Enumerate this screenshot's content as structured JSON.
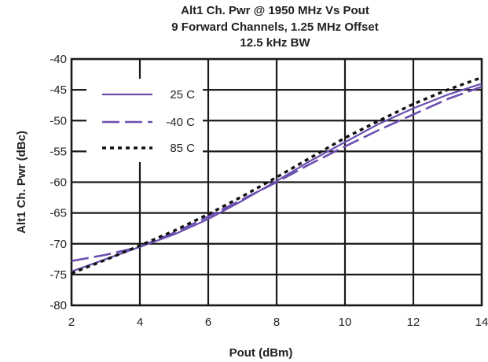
{
  "chart_data": {
    "type": "line",
    "title_lines": [
      "Alt1 Ch. Pwr @ 1950 MHz Vs Pout",
      "9 Forward Channels, 1.25 MHz Offset",
      "12.5 kHz BW"
    ],
    "xlabel": "Pout (dBm)",
    "ylabel": "Alt1 Ch. Pwr (dBc)",
    "xlim": [
      2,
      14
    ],
    "ylim": [
      -80,
      -40
    ],
    "xticks": [
      2,
      4,
      6,
      8,
      10,
      12,
      14
    ],
    "yticks": [
      -80,
      -75,
      -70,
      -65,
      -60,
      -55,
      -50,
      -45,
      -40
    ],
    "grid": true,
    "legend_position": "upper-left",
    "series": [
      {
        "name": "25 C",
        "style": "solid",
        "color": "#6a4fb0",
        "x": [
          2,
          3,
          4,
          5,
          6,
          7,
          8,
          9,
          10,
          11,
          12,
          13,
          14
        ],
        "y": [
          -74.5,
          -72.5,
          -70.5,
          -68.5,
          -66.0,
          -63.0,
          -59.8,
          -56.5,
          -53.5,
          -50.5,
          -48.0,
          -45.8,
          -44.0
        ]
      },
      {
        "name": "-40 C",
        "style": "dashed",
        "color": "#6a4fb0",
        "x": [
          2,
          3,
          4,
          5,
          6,
          7,
          8,
          9,
          10,
          11,
          12,
          13,
          14
        ],
        "y": [
          -72.8,
          -71.8,
          -70.5,
          -68.2,
          -65.6,
          -62.8,
          -60.0,
          -57.0,
          -54.2,
          -51.5,
          -49.0,
          -46.5,
          -44.5
        ]
      },
      {
        "name": "85 C",
        "style": "dotted",
        "color": "#111111",
        "x": [
          2,
          3,
          4,
          5,
          6,
          7,
          8,
          9,
          10,
          11,
          12,
          13,
          14
        ],
        "y": [
          -74.8,
          -72.6,
          -70.3,
          -67.9,
          -65.2,
          -62.3,
          -59.2,
          -56.0,
          -52.8,
          -50.0,
          -47.3,
          -45.0,
          -43.0
        ]
      }
    ]
  }
}
